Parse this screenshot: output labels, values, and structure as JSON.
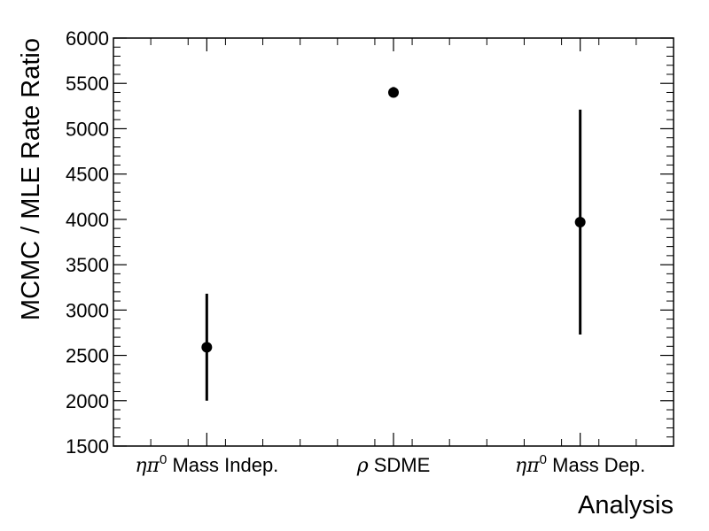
{
  "chart_data": {
    "type": "scatter",
    "xlabel": "Analysis",
    "ylabel": "MCMC / MLE Rate Ratio",
    "ylim": [
      1500,
      6000
    ],
    "yticks": [
      1500,
      2000,
      2500,
      3000,
      3500,
      4000,
      4500,
      5000,
      5500,
      6000
    ],
    "grid": false,
    "categories": [
      {
        "greek": "ηπ",
        "sup": "0",
        "text": " Mass Indep."
      },
      {
        "greek": "ρ",
        "sup": "",
        "text": " SDME"
      },
      {
        "greek": "ηπ",
        "sup": "0",
        "text": " Mass Dep."
      }
    ],
    "points": [
      {
        "value": 2590,
        "err_low": 2000,
        "err_high": 3180
      },
      {
        "value": 5400,
        "err_low": 5350,
        "err_high": 5460
      },
      {
        "value": 3970,
        "err_low": 2730,
        "err_high": 5210
      }
    ],
    "marker_color": "#000000"
  }
}
